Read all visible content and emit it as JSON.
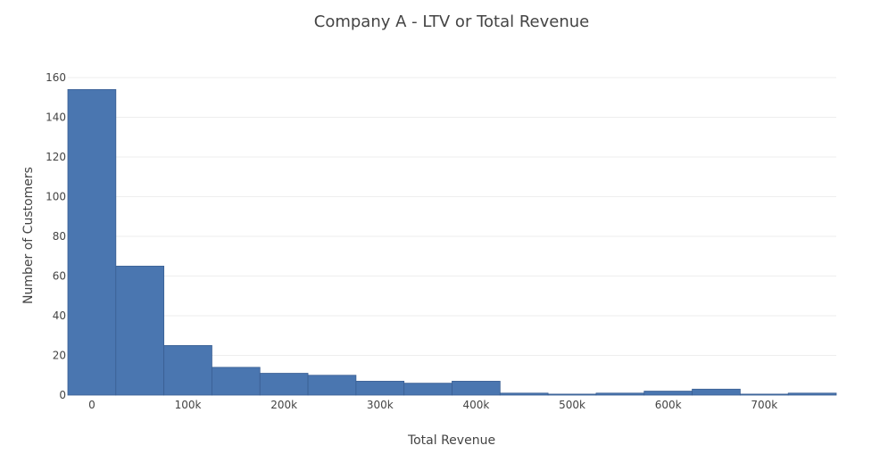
{
  "chart_data": {
    "type": "bar",
    "title": "Company A - LTV or Total Revenue",
    "xlabel": "Total Revenue",
    "ylabel": "Number of Customers",
    "bin_width": 50000,
    "bins_start": -25000,
    "values": [
      154,
      65,
      25,
      14,
      11,
      10,
      7,
      6,
      7,
      1,
      0.5,
      1,
      2,
      3,
      0.5,
      1
    ],
    "xlim": [
      -25000,
      775000
    ],
    "ylim": [
      0,
      160
    ],
    "x_ticks": [
      {
        "value": 0,
        "label": "0"
      },
      {
        "value": 100000,
        "label": "100k"
      },
      {
        "value": 200000,
        "label": "200k"
      },
      {
        "value": 300000,
        "label": "300k"
      },
      {
        "value": 400000,
        "label": "400k"
      },
      {
        "value": 500000,
        "label": "500k"
      },
      {
        "value": 600000,
        "label": "600k"
      },
      {
        "value": 700000,
        "label": "700k"
      }
    ],
    "y_ticks": [
      {
        "value": 0,
        "label": "0"
      },
      {
        "value": 20,
        "label": "20"
      },
      {
        "value": 40,
        "label": "40"
      },
      {
        "value": 60,
        "label": "60"
      },
      {
        "value": 80,
        "label": "80"
      },
      {
        "value": 100,
        "label": "100"
      },
      {
        "value": 120,
        "label": "120"
      },
      {
        "value": 140,
        "label": "140"
      },
      {
        "value": 160,
        "label": "160"
      }
    ],
    "grid": true,
    "bar_color": "#4a76b0"
  }
}
